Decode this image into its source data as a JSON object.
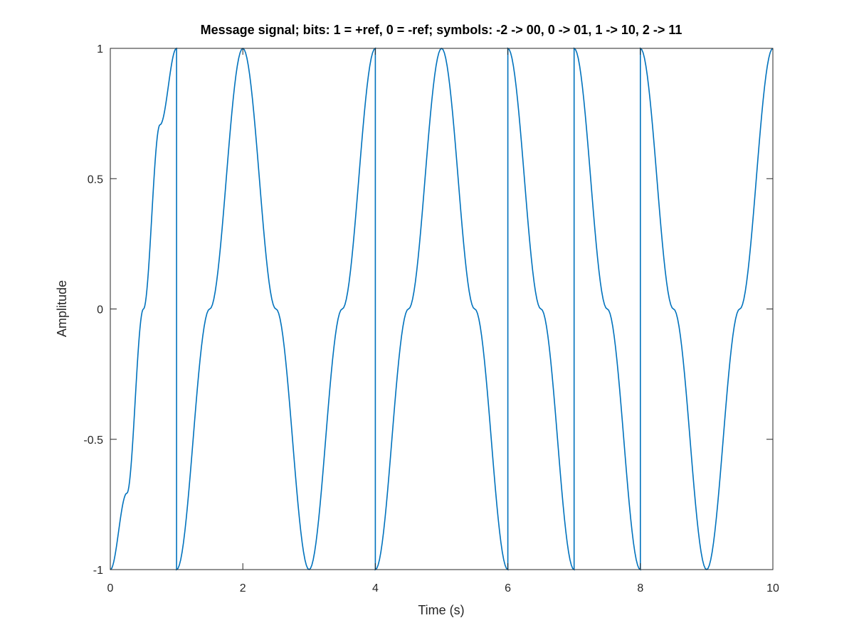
{
  "chart_data": {
    "type": "line",
    "title": "Message signal; bits: 1 = +ref, 0 = -ref; symbols: -2 -> 00, 0 -> 01, 1 -> 10, 2 -> 11",
    "xlabel": "Time (s)",
    "ylabel": "Amplitude",
    "xlim": [
      0,
      10
    ],
    "ylim": [
      -1,
      1
    ],
    "xticks": [
      0,
      2,
      4,
      6,
      8,
      10
    ],
    "xtick_labels": [
      "0",
      "2",
      "4",
      "6",
      "8",
      "10"
    ],
    "yticks": [
      -1,
      -0.5,
      0,
      0.5,
      1
    ],
    "ytick_labels": [
      "-1",
      "-0.5",
      "0",
      "0.5",
      "1"
    ],
    "grid": false,
    "legend": "none",
    "series": [
      {
        "color": "#0072bd",
        "x": [
          0,
          0.25,
          0.5,
          0.75,
          1,
          1,
          1.5,
          2,
          2.5,
          3,
          3.5,
          4,
          4,
          4.5,
          5,
          5.5,
          6,
          6,
          6.5,
          7,
          7,
          7.5,
          8,
          8,
          8.5,
          9,
          9.5,
          10
        ],
        "y": [
          -1,
          -0.707,
          0,
          0.707,
          1,
          -1,
          0,
          1,
          0,
          -1,
          0,
          1,
          -1,
          0,
          1,
          0,
          -1,
          1,
          0,
          -1,
          1,
          0,
          -1,
          1,
          0,
          -1,
          0,
          1
        ]
      }
    ]
  }
}
